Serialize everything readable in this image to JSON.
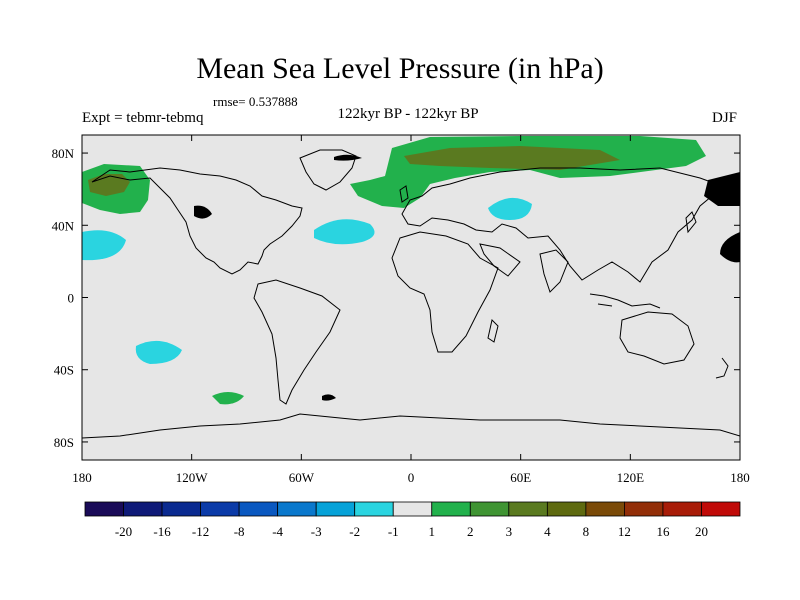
{
  "title": "Mean Sea Level Pressure (in hPa)",
  "rmse_label": "rmse= 0.537888",
  "experiment_label": "Expt = tebmr-tebmq",
  "period_label": "122kyr BP - 122kyr BP",
  "season_label": "DJF",
  "map": {
    "projection": "cylindrical equidistant",
    "lon_range": [
      -180,
      180
    ],
    "lat_range": [
      -90,
      90
    ],
    "x_ticks": [
      {
        "lon": -180,
        "label": "180"
      },
      {
        "lon": -120,
        "label": "120W"
      },
      {
        "lon": -60,
        "label": "60W"
      },
      {
        "lon": 0,
        "label": "0"
      },
      {
        "lon": 60,
        "label": "60E"
      },
      {
        "lon": 120,
        "label": "120E"
      },
      {
        "lon": 180,
        "label": "180"
      }
    ],
    "y_ticks": [
      {
        "lat": 80,
        "label": "80N"
      },
      {
        "lat": 40,
        "label": "40N"
      },
      {
        "lat": 0,
        "label": "0"
      },
      {
        "lat": -40,
        "label": "40S"
      },
      {
        "lat": -80,
        "label": "80S"
      }
    ],
    "background_color": "#e6e6e6",
    "anomaly_regions": [
      {
        "name": "north-pacific-positive",
        "value_class": "1 to 2",
        "color": "#22b14c"
      },
      {
        "name": "north-pacific-core",
        "value_class": "3 to 4",
        "color": "#5a7a20"
      },
      {
        "name": "eurasia-arctic-positive",
        "value_class": "1 to 2",
        "color": "#22b14c"
      },
      {
        "name": "eurasia-arctic-core",
        "value_class": "3 to 4",
        "color": "#5a7a20"
      },
      {
        "name": "north-atlantic-negative",
        "value_class": "-2 to -1",
        "color": "#2ad4e0"
      },
      {
        "name": "central-asia-negative",
        "value_class": "-2 to -1",
        "color": "#2ad4e0"
      },
      {
        "name": "subtropical-pacific-negative",
        "value_class": "-2 to -1",
        "color": "#2ad4e0"
      },
      {
        "name": "south-pacific-negative",
        "value_class": "-2 to -1",
        "color": "#2ad4e0"
      },
      {
        "name": "south-pacific-positive",
        "value_class": "1 to 2",
        "color": "#22b14c"
      }
    ]
  },
  "colorbar": {
    "colors": [
      "#1a0b58",
      "#0f1a78",
      "#0a2a90",
      "#0b3ba8",
      "#0a58c0",
      "#0a78cc",
      "#06a2d8",
      "#2ad4e0",
      "#e6e6e6",
      "#22b14c",
      "#3f9433",
      "#5a7a20",
      "#5e6a10",
      "#7a4a08",
      "#922e08",
      "#a81c08",
      "#c00a08"
    ],
    "labels": [
      "-20",
      "-16",
      "-12",
      "-8",
      "-4",
      "-3",
      "-2",
      "-1",
      "1",
      "2",
      "3",
      "4",
      "8",
      "12",
      "16",
      "20"
    ]
  }
}
